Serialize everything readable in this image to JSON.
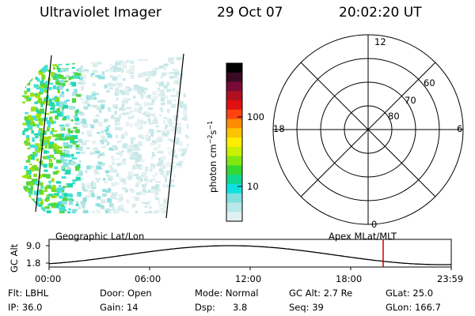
{
  "header": {
    "instrument": "Ultraviolet Imager",
    "date": "29 Oct 07",
    "time": "20:02:20 UT"
  },
  "colorbar": {
    "unit": "photon cm",
    "unit_exp1": "−2",
    "unit_mid": "s",
    "unit_exp2": "−1",
    "ticks": [
      "100",
      "10"
    ],
    "colors": [
      "#000000",
      "#3b0a24",
      "#7a0b36",
      "#b01020",
      "#e01010",
      "#ff4410",
      "#ff8c00",
      "#ffc400",
      "#ffee00",
      "#c8f000",
      "#80e810",
      "#33d833",
      "#10d890",
      "#10e0e0",
      "#80e0e0",
      "#b8e8e8",
      "#e0f0f0"
    ]
  },
  "polar": {
    "mlt_labels": {
      "top": "12",
      "left": "18",
      "right": "6",
      "bottom": "0"
    },
    "lat_labels": [
      "60",
      "70",
      "80"
    ]
  },
  "timeline": {
    "left_title": "Geographic Lat/Lon",
    "right_title": "Apex MLat/MLT",
    "y_axis_label": "GC Alt",
    "y_ticks": [
      "9.0",
      "1.8"
    ],
    "x_ticks": [
      "00:00",
      "06:00",
      "12:00",
      "18:00",
      "23:59"
    ],
    "marker_time": "20:02:20",
    "marker_color": "#cc0000"
  },
  "status": {
    "flt_label": "Flt:",
    "flt_value": "LBHL",
    "ip_label": "IP:",
    "ip_value": "36.0",
    "door_label": "Door:",
    "door_value": "Open",
    "gain_label": "Gain:",
    "gain_value": "14",
    "mode_label": "Mode:",
    "mode_value": "Normal",
    "dsp_label": "Dsp:",
    "dsp_value": "3.8",
    "gcalt_label": "GC Alt:",
    "gcalt_value": "2.7 Re",
    "seq_label": "Seq:",
    "seq_value": "39",
    "glat_label": "GLat:",
    "glat_value": "25.0",
    "glon_label": "GLon:",
    "glon_value": "166.7"
  }
}
